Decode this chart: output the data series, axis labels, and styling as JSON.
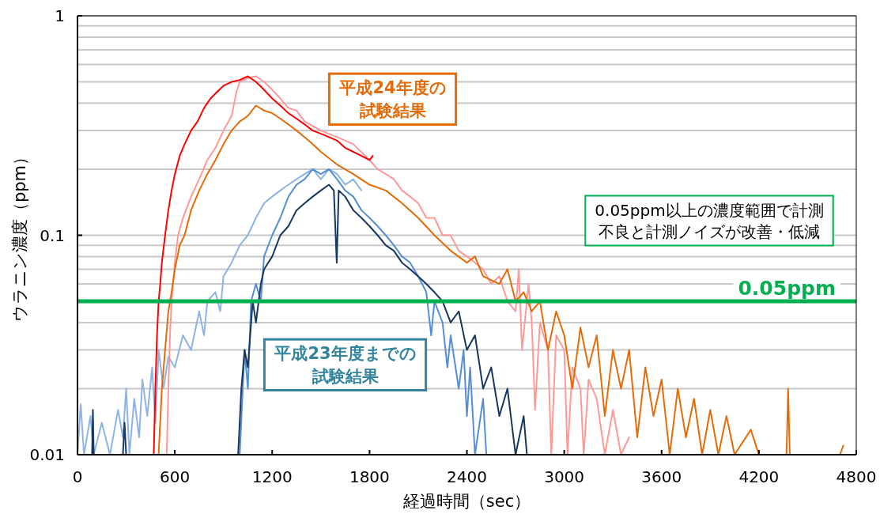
{
  "chart_data": {
    "type": "line",
    "xlabel": "経過時間（sec）",
    "ylabel": "ウラニン濃度（ppm）",
    "log": "y",
    "grid": "y",
    "xlim": [
      0,
      4800
    ],
    "xticks": [
      0,
      600,
      1200,
      1800,
      2400,
      3000,
      3600,
      4200,
      4800
    ],
    "ylim": [
      0.01,
      1
    ],
    "yticks": [
      0.01,
      {
        "value": 0.02,
        "label": null
      },
      {
        "value": 0.03,
        "label": null
      },
      {
        "value": 0.04,
        "label": null
      },
      {
        "value": 0.05,
        "label": null
      },
      {
        "value": 0.06,
        "label": null
      },
      {
        "value": 0.07,
        "label": null
      },
      {
        "value": 0.08,
        "label": null
      },
      {
        "value": 0.09,
        "label": null
      },
      0.1,
      {
        "value": 0.2,
        "label": null
      },
      {
        "value": 0.3,
        "label": null
      },
      {
        "value": 0.4,
        "label": null
      },
      {
        "value": 0.5,
        "label": null
      },
      {
        "value": 0.6,
        "label": null
      },
      {
        "value": 0.7,
        "label": null
      },
      {
        "value": 0.8,
        "label": null
      },
      {
        "value": 0.9,
        "label": null
      },
      1
    ],
    "ref_lines": [
      {
        "axis": "y",
        "value": 0.05,
        "label": "0.05ppm",
        "color": "#00b050"
      }
    ],
    "annotations": [
      "平成24年度の試験結果",
      "平成23年度までの試験結果",
      "0.05ppm以上の濃度範囲で計測不良と計測ノイズが改善・低減"
    ],
    "series": [
      {
        "color": "#8eb4e3",
        "x": [
          0,
          20,
          40,
          80,
          100,
          150,
          200,
          250,
          280,
          300,
          320,
          350,
          380,
          400,
          430,
          460,
          480,
          500,
          530,
          560,
          600,
          650,
          700,
          750,
          780,
          800,
          850,
          880,
          900,
          950,
          1000,
          1050,
          1100,
          1150,
          1200,
          1250,
          1300,
          1350,
          1400,
          1450,
          1500,
          1550,
          1600,
          1650,
          1700,
          1750
        ],
        "values": [
          0.01,
          0.017,
          0.01,
          0.015,
          0.01,
          0.014,
          0.01,
          0.016,
          0.012,
          0.02,
          0.01,
          0.018,
          0.012,
          0.022,
          0.015,
          0.025,
          0.014,
          0.03,
          0.02,
          0.028,
          0.025,
          0.035,
          0.03,
          0.045,
          0.035,
          0.05,
          0.055,
          0.045,
          0.065,
          0.075,
          0.09,
          0.1,
          0.12,
          0.14,
          0.15,
          0.16,
          0.17,
          0.18,
          0.19,
          0.2,
          0.18,
          0.2,
          0.19,
          0.17,
          0.18,
          0.16
        ]
      },
      {
        "color": "#558ed5",
        "x": [
          1000,
          1030,
          1050,
          1070,
          1100,
          1130,
          1150,
          1200,
          1250,
          1300,
          1350,
          1400,
          1450,
          1500,
          1550,
          1600,
          1650,
          1700,
          1750,
          1800,
          1850,
          1900,
          1950,
          2000,
          2050,
          2100,
          2150,
          2180,
          2200,
          2250,
          2280,
          2300,
          2350,
          2380,
          2400,
          2420,
          2450,
          2500,
          2520
        ],
        "values": [
          0.01,
          0.03,
          0.02,
          0.05,
          0.06,
          0.05,
          0.08,
          0.1,
          0.12,
          0.15,
          0.17,
          0.18,
          0.2,
          0.19,
          0.2,
          0.18,
          0.16,
          0.15,
          0.13,
          0.12,
          0.11,
          0.1,
          0.09,
          0.08,
          0.075,
          0.065,
          0.055,
          0.035,
          0.05,
          0.04,
          0.025,
          0.035,
          0.02,
          0.03,
          0.015,
          0.025,
          0.01,
          0.018,
          0.01
        ]
      },
      {
        "color": "#17375e",
        "x": [
          90,
          95,
          100,
          280,
          290,
          300,
          990,
          1010,
          1030,
          1050,
          1080,
          1100,
          1130,
          1150,
          1200,
          1250,
          1300,
          1350,
          1400,
          1450,
          1500,
          1550,
          1580,
          1598,
          1610,
          1650,
          1700,
          1750,
          1800,
          1850,
          1900,
          1950,
          2000,
          2050,
          2100,
          2150,
          2200,
          2250,
          2300,
          2350,
          2400,
          2450,
          2500,
          2550,
          2600,
          2650,
          2700,
          2750,
          2770
        ],
        "values": [
          0.01,
          0.016,
          0.01,
          0.01,
          0.014,
          0.01,
          0.01,
          0.02,
          0.03,
          0.025,
          0.05,
          0.04,
          0.06,
          0.07,
          0.08,
          0.1,
          0.11,
          0.13,
          0.14,
          0.15,
          0.16,
          0.17,
          0.16,
          0.075,
          0.16,
          0.15,
          0.13,
          0.12,
          0.11,
          0.1,
          0.09,
          0.085,
          0.075,
          0.07,
          0.065,
          0.06,
          0.055,
          0.05,
          0.04,
          0.045,
          0.03,
          0.035,
          0.02,
          0.025,
          0.015,
          0.02,
          0.01,
          0.015,
          0.01
        ]
      },
      {
        "color": "#ff9999",
        "x": [
          550,
          560,
          570,
          580,
          600,
          620,
          650,
          700,
          750,
          800,
          850,
          900,
          950,
          980,
          1000,
          1050,
          1100,
          1150,
          1200,
          1250,
          1300,
          1350,
          1400,
          1500,
          1600,
          1700,
          1800,
          1850,
          1900,
          1950,
          2000,
          2050,
          2100,
          2150,
          2200,
          2250,
          2300,
          2350,
          2400,
          2450,
          2500,
          2550,
          2600,
          2650,
          2700,
          2720,
          2740,
          2780,
          2800,
          2820,
          2850,
          2900,
          2920,
          2950,
          3000,
          3020,
          3050,
          3100,
          3120,
          3150,
          3200,
          3250,
          3300,
          3350,
          3400
        ],
        "values": [
          0.01,
          0.02,
          0.035,
          0.05,
          0.075,
          0.1,
          0.12,
          0.15,
          0.18,
          0.22,
          0.25,
          0.3,
          0.35,
          0.45,
          0.5,
          0.52,
          0.53,
          0.5,
          0.46,
          0.42,
          0.38,
          0.37,
          0.33,
          0.3,
          0.28,
          0.26,
          0.22,
          0.2,
          0.19,
          0.18,
          0.16,
          0.15,
          0.14,
          0.12,
          0.12,
          0.1,
          0.1,
          0.085,
          0.08,
          0.075,
          0.07,
          0.06,
          0.065,
          0.05,
          0.045,
          0.07,
          0.03,
          0.06,
          0.04,
          0.016,
          0.04,
          0.03,
          0.01,
          0.035,
          0.03,
          0.01,
          0.025,
          0.02,
          0.01,
          0.022,
          0.018,
          0.01,
          0.016,
          0.01,
          0.012
        ]
      },
      {
        "color": "#e36c09",
        "x": [
          500,
          520,
          540,
          560,
          580,
          600,
          630,
          660,
          700,
          750,
          800,
          850,
          900,
          950,
          1000,
          1050,
          1100,
          1150,
          1200,
          1250,
          1300,
          1350,
          1400,
          1450,
          1500,
          1600,
          1700,
          1800,
          1900,
          2000,
          2100,
          2200,
          2300,
          2400,
          2450,
          2500,
          2600,
          2650,
          2700,
          2750,
          2800,
          2850,
          2900,
          2950,
          3000,
          3050,
          3100,
          3150,
          3200,
          3250,
          3300,
          3350,
          3400,
          3450,
          3500,
          3550,
          3600,
          3650,
          3700,
          3750,
          3800,
          3850,
          3900,
          3950,
          4000,
          4050,
          4150,
          4200,
          4370,
          4380,
          4390,
          4700,
          4720
        ],
        "values": [
          0.01,
          0.02,
          0.03,
          0.045,
          0.055,
          0.07,
          0.09,
          0.1,
          0.13,
          0.16,
          0.19,
          0.22,
          0.26,
          0.3,
          0.33,
          0.35,
          0.39,
          0.37,
          0.36,
          0.34,
          0.32,
          0.3,
          0.28,
          0.26,
          0.24,
          0.21,
          0.19,
          0.17,
          0.16,
          0.14,
          0.12,
          0.1,
          0.085,
          0.075,
          0.08,
          0.065,
          0.06,
          0.07,
          0.05,
          0.055,
          0.045,
          0.05,
          0.03,
          0.045,
          0.035,
          0.02,
          0.038,
          0.025,
          0.035,
          0.015,
          0.03,
          0.02,
          0.03,
          0.012,
          0.025,
          0.015,
          0.022,
          0.01,
          0.02,
          0.012,
          0.018,
          0.01,
          0.016,
          0.01,
          0.015,
          0.01,
          0.013,
          0.01,
          0.01,
          0.02,
          0.01,
          0.01,
          0.011
        ]
      },
      {
        "color": "#ff0000",
        "x": [
          470,
          480,
          490,
          500,
          510,
          520,
          540,
          560,
          580,
          600,
          630,
          660,
          700,
          740,
          780,
          820,
          860,
          900,
          950,
          1000,
          1050,
          1100,
          1150,
          1200,
          1250,
          1300,
          1350,
          1400,
          1450,
          1500,
          1550,
          1600,
          1650,
          1700,
          1750,
          1800,
          1820
        ],
        "values": [
          0.01,
          0.02,
          0.035,
          0.05,
          0.06,
          0.075,
          0.1,
          0.13,
          0.16,
          0.19,
          0.23,
          0.26,
          0.3,
          0.33,
          0.38,
          0.42,
          0.45,
          0.48,
          0.5,
          0.51,
          0.53,
          0.5,
          0.46,
          0.42,
          0.39,
          0.36,
          0.34,
          0.32,
          0.3,
          0.29,
          0.28,
          0.27,
          0.25,
          0.24,
          0.23,
          0.22,
          0.23
        ]
      }
    ]
  }
}
